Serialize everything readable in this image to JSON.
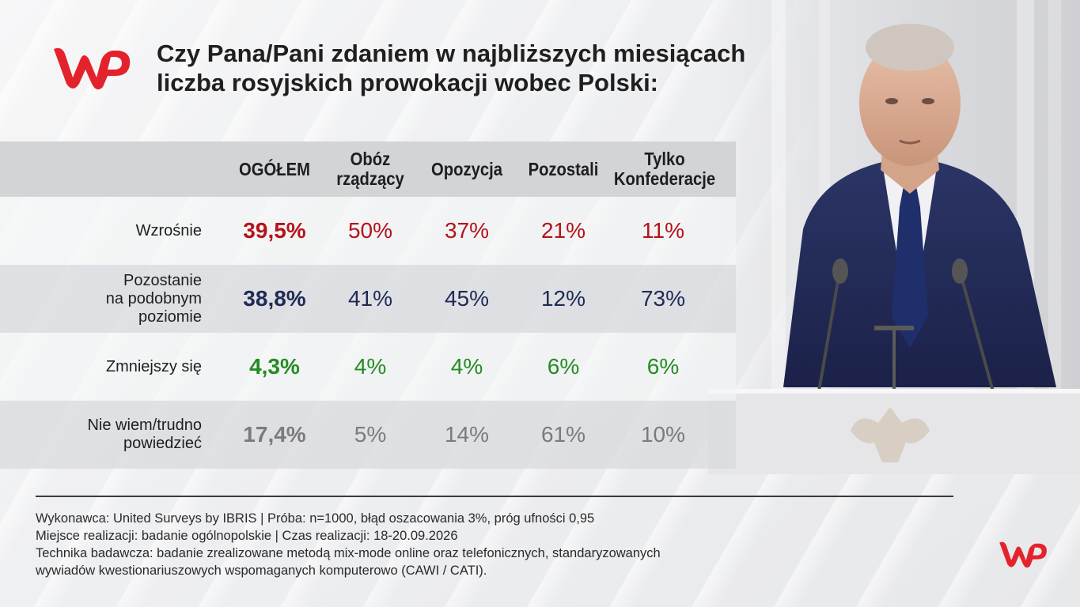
{
  "brand": {
    "logo": "wp-logo",
    "color": "#e3232c"
  },
  "title": {
    "line1": "Czy Pana/Pani zdaniem w najbliższych miesiącach",
    "line2": "liczba rosyjskich prowokacji wobec Polski:"
  },
  "chart_data": {
    "type": "table",
    "columns": [
      "OGÓŁEM",
      "Obóz\nrządzący",
      "Opozycja",
      "Pozostali",
      "Tylko\nKonfederacje"
    ],
    "rows": [
      {
        "label": "Wzrośnie",
        "values": [
          "39,5%",
          "50%",
          "37%",
          "21%",
          "11%"
        ],
        "color": "#b5121b"
      },
      {
        "label": "Pozostanie\nna podobnym\npoziomie",
        "values": [
          "38,8%",
          "41%",
          "45%",
          "12%",
          "73%"
        ],
        "color": "#1f2a55"
      },
      {
        "label": "Zmniejszy się",
        "values": [
          "4,3%",
          "4%",
          "4%",
          "6%",
          "6%"
        ],
        "color": "#238c22"
      },
      {
        "label": "Nie wiem/trudno\npowiedzieć",
        "values": [
          "17,4%",
          "5%",
          "14%",
          "61%",
          "10%"
        ],
        "color": "#7b7b7b"
      }
    ]
  },
  "notes": {
    "line1": "Wykonawca: United Surveys by IBRIS | Próba: n=1000, błąd oszacowania 3%, próg ufności 0,95",
    "line2": "Miejsce realizacji: badanie ogólnopolskie | Czas realizacji: 18-20.09.2026",
    "line3": "Technika badawcza: badanie zrealizowane metodą mix-mode online oraz telefonicznych, standaryzowanych",
    "line4": "wywiadów kwestionariuszowych wspomaganych komputerowo (CAWI / CATI)."
  }
}
